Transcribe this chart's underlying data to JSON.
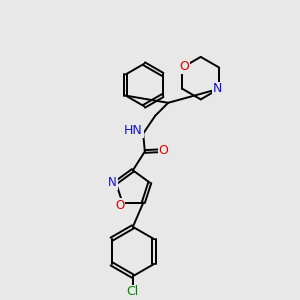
{
  "background_color": "#e8e8e8",
  "bond_color": "#000000",
  "atom_colors": {
    "N": "#1010d0",
    "O": "#dd0000",
    "Cl": "#008800",
    "C": "#000000",
    "H": "#555555"
  },
  "figsize": [
    3.0,
    3.0
  ],
  "dpi": 100
}
